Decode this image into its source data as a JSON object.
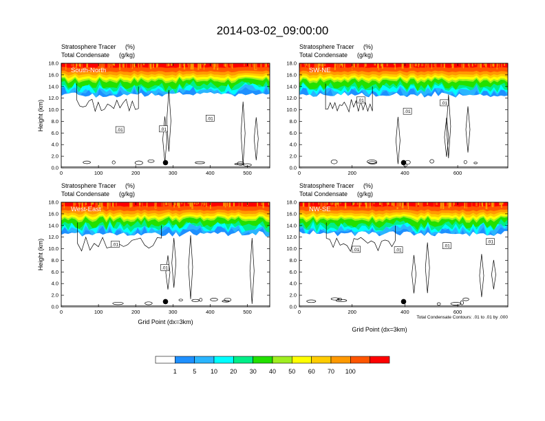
{
  "title": "2014-03-02_09:00:00",
  "note": "Total Condensate Contours: .01 to .01 by .000",
  "colorbar": {
    "colors": [
      "#ffffff",
      "#1e90ff",
      "#2ab5ff",
      "#00ffff",
      "#00ee88",
      "#22e000",
      "#a0ee20",
      "#ffff00",
      "#ffcc00",
      "#ff9900",
      "#ff5500",
      "#ff0000"
    ],
    "labels": [
      "1",
      "5",
      "10",
      "20",
      "30",
      "40",
      "50",
      "60",
      "70",
      "100"
    ]
  },
  "chart_data": [
    {
      "type": "heatmap",
      "panel_label": "South-North",
      "subtitle_left_1": "Stratosphere Tracer",
      "subtitle_units_1": "(%)",
      "subtitle_left_2": "Total Condensate",
      "subtitle_units_2": "(g/kg)",
      "ylabel": "Height (km)",
      "xlabel": "",
      "xlim": [
        0,
        560
      ],
      "ylim": [
        0,
        18
      ],
      "xticks": [
        0,
        100,
        200,
        300,
        400,
        500
      ],
      "yticks": [
        "0.0",
        "2.0",
        "4.0",
        "6.0",
        "8.0",
        "10.0",
        "12.0",
        "14.0",
        "16.0",
        "18.0"
      ],
      "contour_labels": [
        ".01",
        ".01",
        ".01"
      ],
      "marker_x": 280
    },
    {
      "type": "heatmap",
      "panel_label": "SW-NE",
      "subtitle_left_1": "Stratosphere Tracer",
      "subtitle_units_1": "(%)",
      "subtitle_left_2": "Total Condensate",
      "subtitle_units_2": "(g/kg)",
      "ylabel": "",
      "xlabel": "",
      "xlim": [
        0,
        790
      ],
      "ylim": [
        0,
        18
      ],
      "xticks": [
        0,
        200,
        400,
        600
      ],
      "yticks": [
        "0.0",
        "2.0",
        "4.0",
        "6.0",
        "8.0",
        "10.0",
        "12.0",
        "14.0",
        "16.0",
        "18.0"
      ],
      "contour_labels": [
        ".01",
        ".01",
        ".01"
      ],
      "marker_x": 395
    },
    {
      "type": "heatmap",
      "panel_label": "West-East",
      "subtitle_left_1": "Stratosphere Tracer",
      "subtitle_units_1": "(%)",
      "subtitle_left_2": "Total Condensate",
      "subtitle_units_2": "(g/kg)",
      "ylabel": "Height (km)",
      "xlabel": "Grid Point (dx=3km)",
      "xlim": [
        0,
        560
      ],
      "ylim": [
        0,
        18
      ],
      "xticks": [
        0,
        100,
        200,
        300,
        400,
        500
      ],
      "yticks": [
        "0.0",
        "2.0",
        "4.0",
        "6.0",
        "8.0",
        "10.0",
        "12.0",
        "14.0",
        "16.0",
        "18.0"
      ],
      "contour_labels": [
        ".01",
        ".01"
      ],
      "marker_x": 280
    },
    {
      "type": "heatmap",
      "panel_label": "NW-SE",
      "subtitle_left_1": "Stratosphere Tracer",
      "subtitle_units_1": "(%)",
      "subtitle_left_2": "Total Condensate",
      "subtitle_units_2": "(g/kg)",
      "ylabel": "",
      "xlabel": "Grid Point (dx=3km)",
      "xlim": [
        0,
        790
      ],
      "ylim": [
        0,
        18
      ],
      "xticks": [
        0,
        200,
        400,
        600
      ],
      "yticks": [
        "0.0",
        "2.0",
        "4.0",
        "6.0",
        "8.0",
        "10.0",
        "12.0",
        "14.0",
        "16.0",
        "18.0"
      ],
      "contour_labels": [
        ".01",
        ".01",
        ".01",
        ".01"
      ],
      "marker_x": 395
    }
  ]
}
